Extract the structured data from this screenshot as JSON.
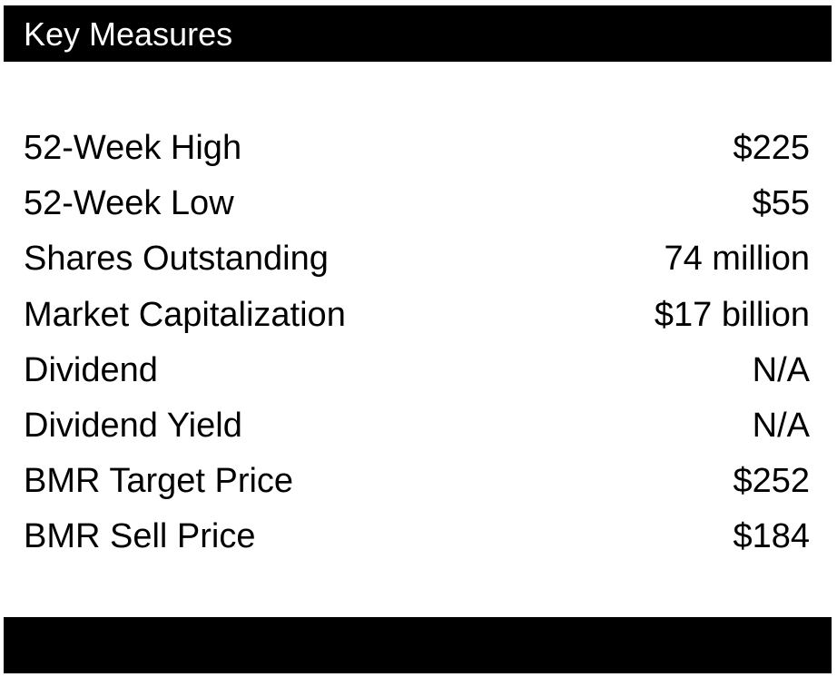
{
  "header": {
    "title": "Key Measures"
  },
  "measures": [
    {
      "label": "52-Week High",
      "value": "$225"
    },
    {
      "label": "52-Week Low",
      "value": "$55"
    },
    {
      "label": "Shares Outstanding",
      "value": "74 million"
    },
    {
      "label": "Market Capitalization",
      "value": "$17 billion"
    },
    {
      "label": "Dividend",
      "value": "N/A"
    },
    {
      "label": "Dividend Yield",
      "value": "N/A"
    },
    {
      "label": "BMR Target Price",
      "value": "$252"
    },
    {
      "label": "BMR Sell Price",
      "value": "$184"
    }
  ],
  "colors": {
    "bar": "#000000",
    "header_text": "#ffffff",
    "text": "#000000",
    "background": "#ffffff"
  }
}
